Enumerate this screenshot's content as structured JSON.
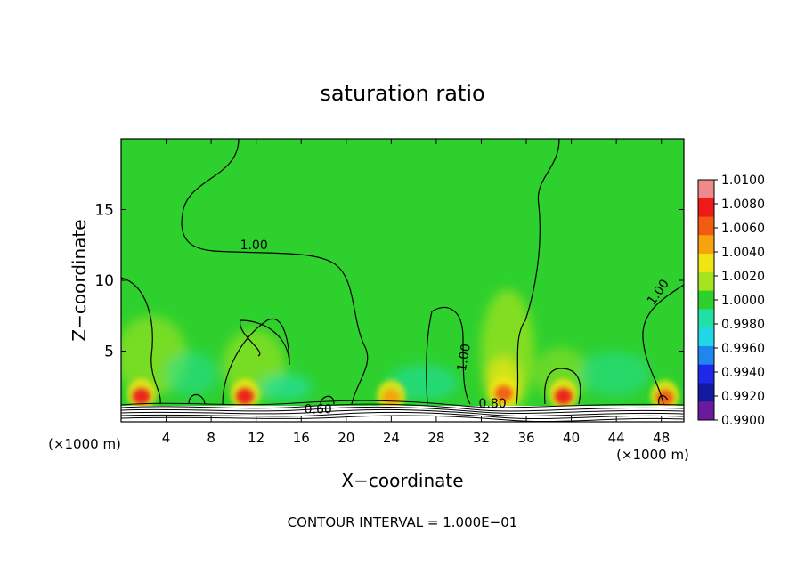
{
  "chart_data": {
    "type": "heatmap",
    "title": "saturation ratio",
    "xlabel": "X−coordinate",
    "ylabel": "Z−coordinate",
    "x_unit_left": "(×1000 m)",
    "x_unit_right": "(×1000 m)",
    "xlim": [
      0,
      50
    ],
    "ylim": [
      0,
      20
    ],
    "xticks": [
      4,
      8,
      12,
      16,
      20,
      24,
      28,
      32,
      36,
      40,
      44,
      48
    ],
    "yticks": [
      5,
      10,
      15
    ],
    "background_value": 1.0,
    "colorbar": {
      "levels": [
        "1.0100",
        "1.0080",
        "1.0060",
        "1.0040",
        "1.0020",
        "1.0000",
        "0.9980",
        "0.9960",
        "0.9940",
        "0.9920",
        "0.9900"
      ],
      "colors": [
        "#f08a8a",
        "#ee1a1a",
        "#f25c12",
        "#f7a20e",
        "#f0e414",
        "#a6e420",
        "#2ed02e",
        "#22e0a4",
        "#20d8e8",
        "#1f86ee",
        "#1f28e8",
        "#141aa0",
        "#6a1a9c"
      ]
    },
    "contour_labels": [
      {
        "text": "1.00",
        "x": 11.8,
        "y": 12.2
      },
      {
        "text": "1.00",
        "x": 30.8,
        "y": 4.5
      },
      {
        "text": "1.00",
        "x": 48.0,
        "y": 9.0
      },
      {
        "text": "0.60",
        "x": 17.5,
        "y": 0.6
      },
      {
        "text": "0.80",
        "x": 33.0,
        "y": 1.0
      }
    ],
    "hotspots": [
      {
        "x": 1.8,
        "z": 1.8,
        "value": 1.008
      },
      {
        "x": 11.0,
        "z": 1.8,
        "value": 1.008
      },
      {
        "x": 24.0,
        "z": 1.7,
        "value": 1.004
      },
      {
        "x": 34.0,
        "z": 2.0,
        "value": 1.006
      },
      {
        "x": 39.3,
        "z": 1.8,
        "value": 1.008
      },
      {
        "x": 48.3,
        "z": 1.7,
        "value": 1.006
      }
    ],
    "footnote": "CONTOUR INTERVAL = 1.000E−01"
  }
}
